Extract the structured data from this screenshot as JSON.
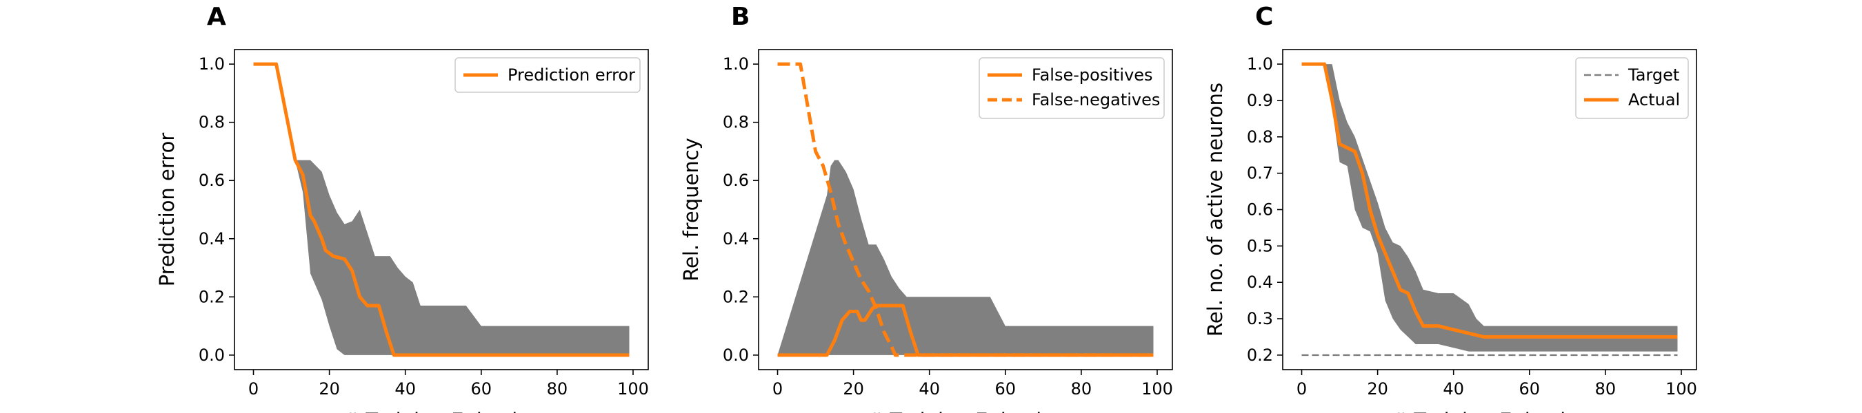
{
  "figure": {
    "panels": [
      "A",
      "B",
      "C"
    ]
  },
  "chart_data": [
    {
      "panel": "A",
      "type": "line",
      "xlabel": "# Training Episodes",
      "ylabel": "Prediction error",
      "xlim": [
        -5,
        104
      ],
      "ylim": [
        -0.05,
        1.05
      ],
      "xticks": [
        0,
        20,
        40,
        60,
        80,
        100
      ],
      "yticks": [
        0.0,
        0.2,
        0.4,
        0.6,
        0.8,
        1.0
      ],
      "ytick_labels": [
        "0.0",
        "0.2",
        "0.4",
        "0.6",
        "0.8",
        "1.0"
      ],
      "grid": false,
      "legend": {
        "position": "top-right",
        "entries": [
          "Prediction error"
        ]
      },
      "series": [
        {
          "name": "Prediction error",
          "style": "solid",
          "color": "#ff7f0e",
          "x": [
            0,
            6,
            11,
            13,
            15,
            16,
            18,
            19,
            21,
            24,
            26,
            28,
            30,
            33,
            35,
            37,
            40,
            50,
            60,
            70,
            80,
            90,
            99
          ],
          "y": [
            1.0,
            1.0,
            0.67,
            0.62,
            0.48,
            0.46,
            0.4,
            0.36,
            0.34,
            0.33,
            0.29,
            0.2,
            0.17,
            0.17,
            0.08,
            0.0,
            0.0,
            0.0,
            0.0,
            0.0,
            0.0,
            0.0,
            0.0
          ]
        }
      ],
      "band": {
        "color": "#808080",
        "x": [
          0,
          6,
          11,
          13,
          15,
          18,
          20,
          22,
          24,
          26,
          27,
          28,
          30,
          32,
          36,
          38,
          40,
          42,
          44,
          48,
          56,
          60,
          99
        ],
        "upper": [
          1.0,
          1.0,
          0.67,
          0.67,
          0.67,
          0.63,
          0.55,
          0.49,
          0.45,
          0.46,
          0.48,
          0.5,
          0.42,
          0.34,
          0.34,
          0.3,
          0.27,
          0.25,
          0.17,
          0.17,
          0.17,
          0.1,
          0.1
        ],
        "lower": [
          1.0,
          1.0,
          0.67,
          0.56,
          0.28,
          0.19,
          0.1,
          0.02,
          0.0,
          0.0,
          0.0,
          0.0,
          0.0,
          0.0,
          0.0,
          0.0,
          0.0,
          0.0,
          0.0,
          0.0,
          0.0,
          0.0,
          0.0
        ]
      }
    },
    {
      "panel": "B",
      "type": "line",
      "xlabel": "# Training Episodes",
      "ylabel": "Rel. frequency",
      "xlim": [
        -5,
        104
      ],
      "ylim": [
        -0.05,
        1.05
      ],
      "xticks": [
        0,
        20,
        40,
        60,
        80,
        100
      ],
      "yticks": [
        0.0,
        0.2,
        0.4,
        0.6,
        0.8,
        1.0
      ],
      "ytick_labels": [
        "0.0",
        "0.2",
        "0.4",
        "0.6",
        "0.8",
        "1.0"
      ],
      "grid": false,
      "legend": {
        "position": "top-right",
        "entries": [
          "False-positives",
          "False-negatives"
        ]
      },
      "series": [
        {
          "name": "False-positives",
          "style": "solid",
          "color": "#ff7f0e",
          "x": [
            0,
            13,
            15,
            17,
            19,
            21,
            22,
            23,
            25,
            26,
            28,
            33,
            35,
            37,
            50,
            99
          ],
          "y": [
            0.0,
            0.0,
            0.05,
            0.12,
            0.15,
            0.15,
            0.12,
            0.12,
            0.16,
            0.17,
            0.17,
            0.17,
            0.08,
            0.0,
            0.0,
            0.0
          ]
        },
        {
          "name": "False-negatives",
          "style": "dashed",
          "color": "#ff7f0e",
          "x": [
            0,
            6,
            10,
            12,
            14,
            16,
            18,
            20,
            22,
            24,
            26,
            28,
            30,
            31,
            99
          ],
          "y": [
            1.0,
            1.0,
            0.7,
            0.65,
            0.56,
            0.45,
            0.38,
            0.32,
            0.26,
            0.22,
            0.16,
            0.08,
            0.03,
            0.0,
            0.0
          ]
        }
      ],
      "band": {
        "color": "#808080",
        "x": [
          0,
          13,
          14,
          15,
          16,
          18,
          20,
          22,
          24,
          26,
          28,
          30,
          32,
          34,
          38,
          42,
          46,
          56,
          60,
          99
        ],
        "upper": [
          0.0,
          0.55,
          0.65,
          0.67,
          0.67,
          0.63,
          0.57,
          0.47,
          0.38,
          0.38,
          0.33,
          0.27,
          0.23,
          0.2,
          0.2,
          0.2,
          0.2,
          0.2,
          0.1,
          0.1
        ],
        "lower": [
          0.0,
          0.0,
          0.0,
          0.0,
          0.0,
          0.0,
          0.0,
          0.0,
          0.0,
          0.0,
          0.0,
          0.0,
          0.0,
          0.0,
          0.0,
          0.0,
          0.0,
          0.0,
          0.0,
          0.0
        ]
      }
    },
    {
      "panel": "C",
      "type": "line",
      "xlabel": "# Training Episodes",
      "ylabel": "Rel. no. of active neurons",
      "xlim": [
        -5,
        104
      ],
      "ylim": [
        0.16,
        1.04
      ],
      "xticks": [
        0,
        20,
        40,
        60,
        80,
        100
      ],
      "yticks": [
        0.2,
        0.3,
        0.4,
        0.5,
        0.6,
        0.7,
        0.8,
        0.9,
        1.0
      ],
      "ytick_labels": [
        "0.2",
        "0.3",
        "0.4",
        "0.5",
        "0.6",
        "0.7",
        "0.8",
        "0.9",
        "1.0"
      ],
      "grid": false,
      "legend": {
        "position": "top-right",
        "entries": [
          "Target",
          "Actual"
        ]
      },
      "series": [
        {
          "name": "Target",
          "style": "dashed",
          "color": "#808080",
          "x": [
            0,
            99
          ],
          "y": [
            0.2,
            0.2
          ]
        },
        {
          "name": "Actual",
          "style": "solid",
          "color": "#ff7f0e",
          "x": [
            0,
            6,
            8,
            10,
            12,
            14,
            16,
            18,
            20,
            22,
            24,
            26,
            28,
            30,
            32,
            36,
            40,
            44,
            48,
            60,
            99
          ],
          "y": [
            1.0,
            1.0,
            0.9,
            0.78,
            0.77,
            0.76,
            0.7,
            0.6,
            0.53,
            0.48,
            0.43,
            0.38,
            0.37,
            0.32,
            0.28,
            0.28,
            0.27,
            0.26,
            0.25,
            0.25,
            0.25
          ]
        }
      ],
      "band": {
        "color": "#808080",
        "x": [
          0,
          6,
          8,
          10,
          12,
          14,
          16,
          18,
          20,
          22,
          24,
          26,
          28,
          30,
          32,
          36,
          40,
          44,
          46,
          48,
          56,
          60,
          99
        ],
        "upper": [
          1.0,
          1.0,
          1.0,
          0.9,
          0.84,
          0.8,
          0.74,
          0.68,
          0.62,
          0.55,
          0.51,
          0.5,
          0.47,
          0.43,
          0.38,
          0.37,
          0.37,
          0.34,
          0.3,
          0.28,
          0.28,
          0.28,
          0.28
        ],
        "lower": [
          1.0,
          1.0,
          0.88,
          0.73,
          0.72,
          0.6,
          0.55,
          0.54,
          0.48,
          0.35,
          0.3,
          0.27,
          0.25,
          0.23,
          0.23,
          0.23,
          0.22,
          0.21,
          0.21,
          0.21,
          0.21,
          0.21,
          0.21
        ]
      }
    }
  ]
}
